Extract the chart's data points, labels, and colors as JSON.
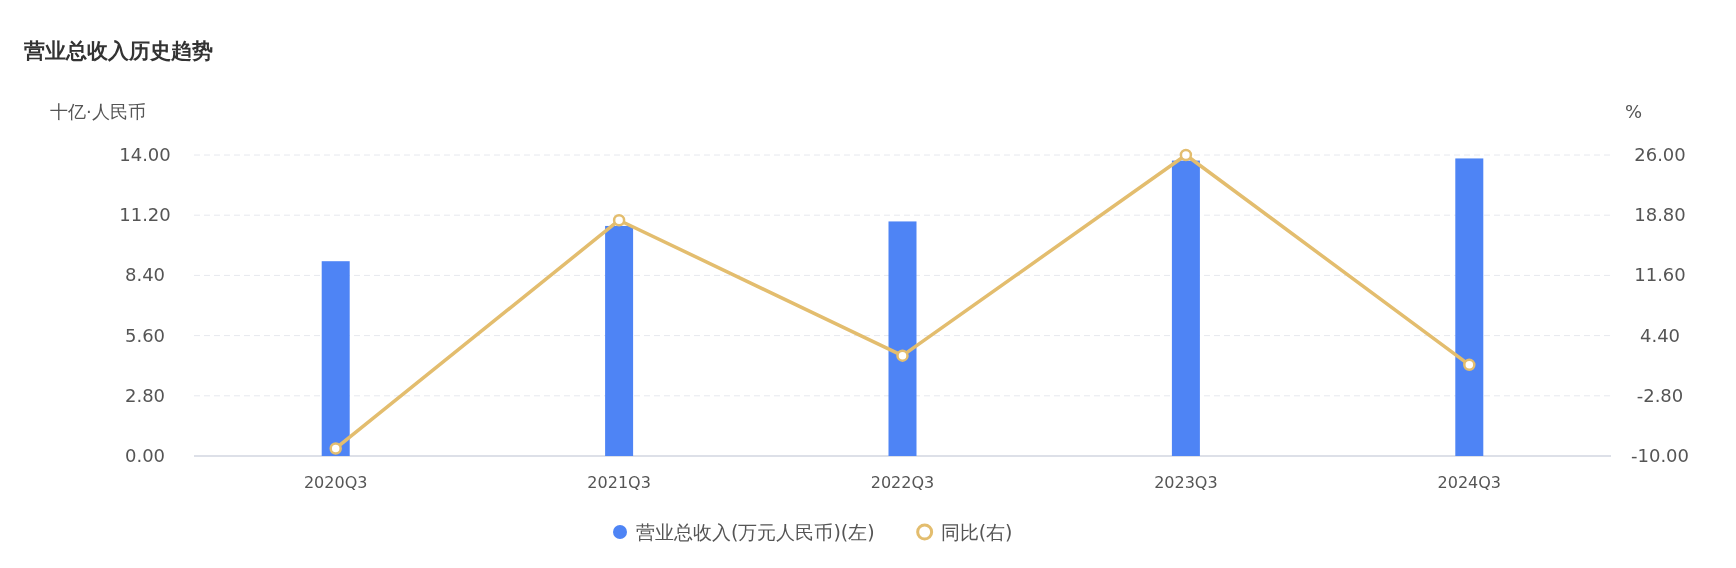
{
  "chart_data": {
    "type": "bar",
    "title": "营业总收入历史趋势",
    "ylabel": "十亿·人民币",
    "y2label": "%",
    "categories": [
      "2020Q3",
      "2021Q3",
      "2022Q3",
      "2023Q3",
      "2024Q3"
    ],
    "series": [
      {
        "name": "营业总收入(万元人民币)(左)",
        "color": "#4e84f5",
        "values": [
          9.06,
          10.7,
          10.91,
          13.74,
          13.84
        ]
      },
      {
        "name": "同比(右)",
        "type": "line",
        "axis": "y2",
        "color": "#e3bd6e",
        "marker": "circle",
        "line_style": "solid",
        "values": [
          -9.1,
          18.2,
          2.0,
          26.0,
          0.9
        ]
      }
    ],
    "ylim": [
      0,
      14
    ],
    "yticks": [
      {
        "value": 0,
        "label": "0.00"
      },
      {
        "value": 2.8,
        "label": "2.80"
      },
      {
        "value": 5.6,
        "label": "5.60"
      },
      {
        "value": 8.4,
        "label": "8.40"
      },
      {
        "value": 11.2,
        "label": "11.20"
      },
      {
        "value": 14,
        "label": "14.00"
      }
    ],
    "y2lim": [
      -10,
      26
    ],
    "y2ticks": [
      {
        "value": -10,
        "label": "-10.00"
      },
      {
        "value": -2.8,
        "label": "-2.80"
      },
      {
        "value": 4.4,
        "label": "4.40"
      },
      {
        "value": 11.6,
        "label": "11.60"
      },
      {
        "value": 18.8,
        "label": "18.80"
      },
      {
        "value": 26,
        "label": "26.00"
      }
    ],
    "grid": "y",
    "legend": "bottom"
  }
}
